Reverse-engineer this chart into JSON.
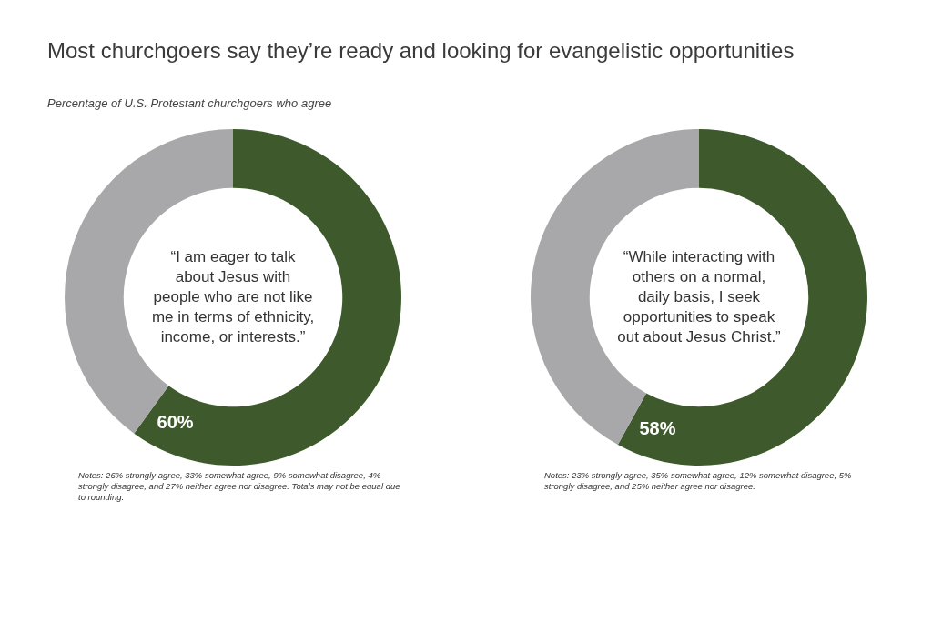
{
  "chart_data": [
    {
      "type": "donut",
      "title": "Most churchgoers say they’re ready and looking for evangelistic opportunities",
      "subtitle": "Percentage of U.S. Protestant churchgoers who agree",
      "categories": [
        null,
        null
      ],
      "values": [
        60,
        40
      ],
      "colors": [
        "#3e5a2c",
        "#a8a7a9"
      ],
      "value_labels": [
        "60%",
        null
      ],
      "legend": false,
      "annotations": [
        "“I am eager to talk about Jesus with people who are not like me in terms of ethnicity, income, or interests.”",
        "Notes: 26% strongly agree, 33% somewhat agree, 9% somewhat disagree, 4% strongly disagree, and 27% neither agree nor disagree. Totals may not be equal due to rounding."
      ]
    },
    {
      "type": "donut",
      "categories": [
        null,
        null
      ],
      "values": [
        58,
        42
      ],
      "colors": [
        "#3e5a2c",
        "#a8a7a9"
      ],
      "value_labels": [
        "58%",
        null
      ],
      "legend": false,
      "annotations": [
        "“While interacting with others on a normal, daily basis, I seek opportunities to speak out about Jesus Christ.”",
        "Notes: 23% strongly agree, 35% somewhat agree, 12% somewhat disagree, 5% strongly disagree, and 25% neither agree nor disagree."
      ]
    }
  ]
}
